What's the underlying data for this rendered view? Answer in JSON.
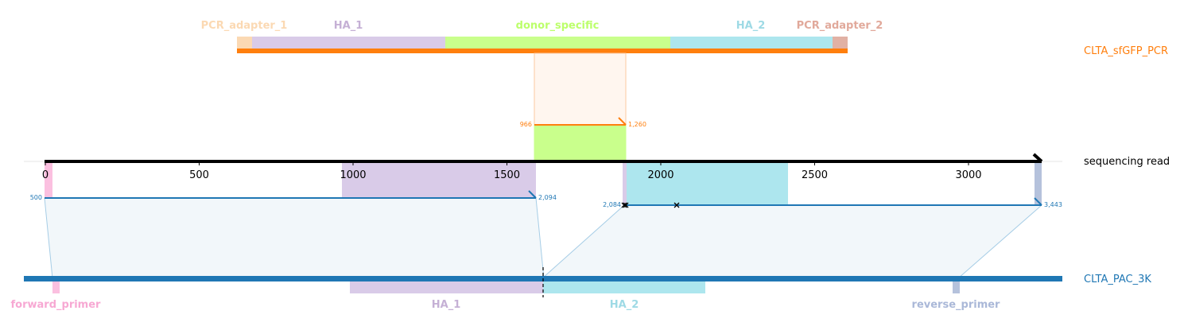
{
  "top_reference": {
    "name": "CLTA_sfGFP_PCR",
    "color": "#ff7f0e",
    "features": [
      {
        "name": "PCR_adapter_1",
        "color": "#fbd9b3"
      },
      {
        "name": "HA_1",
        "color": "#c5b0d5"
      },
      {
        "name": "donor_specific",
        "color": "#bcff6b"
      },
      {
        "name": "HA_2",
        "color": "#9edae5"
      },
      {
        "name": "PCR_adapter_2",
        "color": "#e1a99b"
      }
    ],
    "alignment": {
      "start_label": "966",
      "end_label": "1,260"
    }
  },
  "read": {
    "name": "sequencing read",
    "color": "#000000",
    "axis": {
      "min": 0,
      "max": 3225,
      "ticks": [
        0,
        500,
        1000,
        1500,
        2000,
        2500,
        3000
      ]
    }
  },
  "bottom_reference": {
    "name": "CLTA_PAC_3K",
    "color": "#1f77b4",
    "features": [
      {
        "name": "forward_primer",
        "color": "#f7a8d3"
      },
      {
        "name": "HA_1",
        "color": "#c5b0d5"
      },
      {
        "name": "HA_2",
        "color": "#9edae5"
      },
      {
        "name": "reverse_primer",
        "color": "#aab8d8"
      }
    ],
    "alignments": [
      {
        "start_label": "500",
        "end_label": "2,094"
      },
      {
        "start_label": "2,084",
        "end_label": "3,443"
      }
    ]
  },
  "colors": {
    "accent_orange": "#ff7f0e",
    "accent_blue": "#1f77b4"
  }
}
